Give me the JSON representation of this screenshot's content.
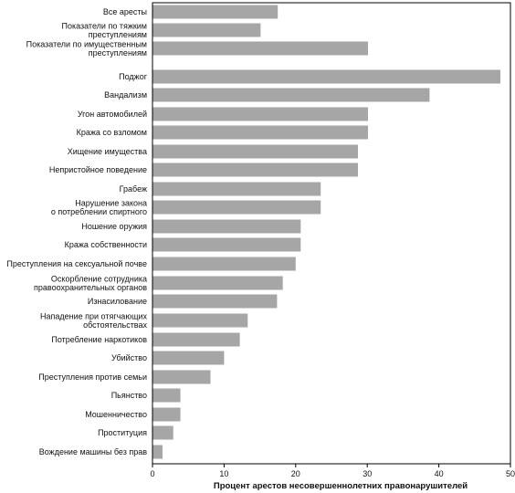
{
  "chart_data": {
    "type": "bar",
    "orientation": "horizontal",
    "xlabel": "Процент арестов несовершеннолетних правонарушителей",
    "xlim": [
      0,
      50
    ],
    "xticks": [
      0,
      10,
      20,
      30,
      40,
      50
    ],
    "grid": false,
    "bar_color": "#a6a6a6",
    "categories": [
      [
        "Все аресты"
      ],
      [
        "Показатели по тяжким",
        "преступлениям"
      ],
      [
        "Показатели по имущественным",
        "преступлениям"
      ],
      [
        "Поджог"
      ],
      [
        "Вандализм"
      ],
      [
        "Угон автомобилей"
      ],
      [
        "Кража со взломом"
      ],
      [
        "Хищение имущества"
      ],
      [
        "Непристойное поведение"
      ],
      [
        "Грабеж"
      ],
      [
        "Нарушение закона",
        "о потреблении спиртного"
      ],
      [
        "Ношение оружия"
      ],
      [
        "Кража собственности"
      ],
      [
        "Преступления на сексуальной почве"
      ],
      [
        "Оскорбление сотрудника",
        "правоохранительных органов"
      ],
      [
        "Изнасилование"
      ],
      [
        "Нападение при отягчающих",
        "обстоятельствах"
      ],
      [
        "Потребление наркотиков"
      ],
      [
        "Убийство"
      ],
      [
        "Преступления против семьи"
      ],
      [
        "Пьянство"
      ],
      [
        "Мошенничество"
      ],
      [
        "Проституция"
      ],
      [
        "Вождение машины без прав"
      ]
    ],
    "values": [
      17.5,
      15.1,
      30.1,
      48.6,
      38.7,
      30.1,
      30.1,
      28.7,
      28.7,
      23.5,
      23.5,
      20.7,
      20.7,
      20.0,
      18.2,
      17.4,
      13.3,
      12.2,
      10.0,
      8.1,
      3.9,
      3.9,
      2.9,
      1.4
    ]
  }
}
